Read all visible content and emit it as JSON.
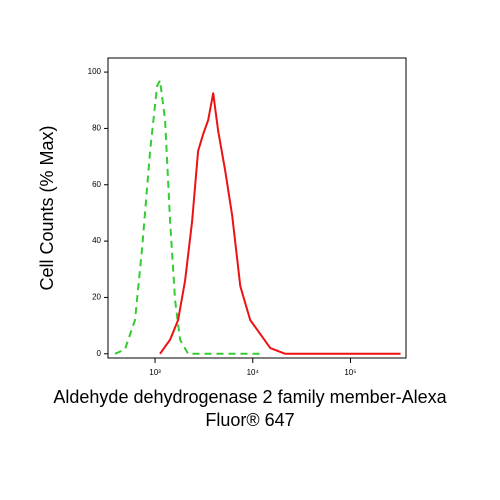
{
  "chart_data": {
    "type": "line",
    "xlabel": [
      "Aldehyde dehydrogenase 2 family member-Alexa",
      "Fluor® 647"
    ],
    "ylabel": "Cell Counts (% Max)",
    "xscale": "log",
    "xlim": [
      330,
      370000
    ],
    "ylim": [
      -1.5,
      105
    ],
    "xticks": [
      {
        "value": 1000,
        "label": "10³"
      },
      {
        "value": 10000,
        "label": "10⁴"
      },
      {
        "value": 100000,
        "label": "10⁵"
      }
    ],
    "yticks": [
      0,
      20,
      40,
      60,
      80,
      100
    ],
    "series": [
      {
        "color": "#33cc33",
        "dash": true,
        "x": [
          389,
          492,
          624,
          736,
          889,
          1049,
          1125,
          1266,
          1426,
          1604,
          1804,
          2178,
          11940
        ],
        "values": [
          0,
          1.5,
          12,
          37,
          72,
          95,
          97,
          83,
          47,
          19,
          5,
          0,
          0
        ]
      },
      {
        "color": "#ee1111",
        "dash": false,
        "x": [
          1125,
          1426,
          1722,
          2030,
          2395,
          2760,
          3107,
          3500,
          3938,
          4426,
          5222,
          6163,
          7447,
          9414,
          11940,
          15110,
          21500,
          326000
        ],
        "values": [
          0,
          5,
          12,
          26,
          47,
          72,
          78,
          83,
          92.5,
          79,
          65,
          49,
          24,
          12,
          7,
          2,
          0,
          0
        ]
      }
    ]
  }
}
